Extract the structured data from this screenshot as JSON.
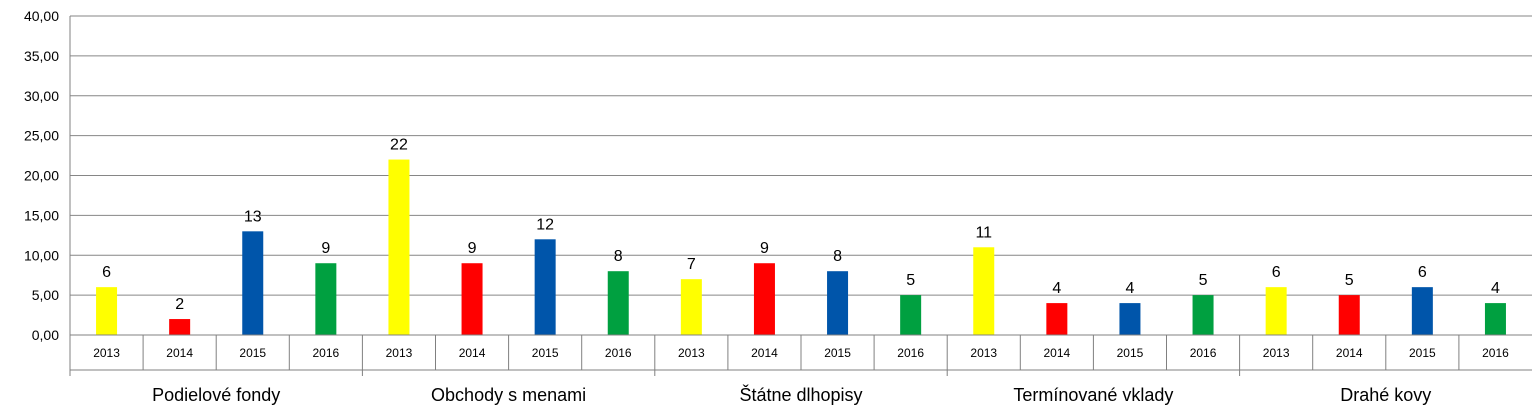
{
  "chart_data": {
    "type": "bar",
    "title": "",
    "xlabel": "",
    "ylabel": "",
    "ylim": [
      0,
      40
    ],
    "yticks": [
      "0,00",
      "5,00",
      "10,00",
      "15,00",
      "20,00",
      "25,00",
      "30,00",
      "35,00",
      "40,00"
    ],
    "grid": true,
    "legend": "none",
    "years": [
      "2013",
      "2014",
      "2015",
      "2016"
    ],
    "year_colors": [
      "#FFFF00",
      "#FF0000",
      "#0055AA",
      "#00A040"
    ],
    "groups": [
      {
        "name": "Podielové fondy",
        "values": [
          6,
          2,
          13,
          9
        ]
      },
      {
        "name": "Obchody s menami",
        "values": [
          22,
          9,
          12,
          8
        ]
      },
      {
        "name": "Štátne dlhopisy",
        "values": [
          7,
          9,
          8,
          5
        ]
      },
      {
        "name": "Termínované vklady",
        "values": [
          11,
          4,
          4,
          5
        ]
      },
      {
        "name": "Drahé kovy",
        "values": [
          6,
          5,
          6,
          4
        ]
      }
    ]
  },
  "colors": {
    "gridline": "#868686",
    "axis": "#808080",
    "background": "#ffffff"
  }
}
